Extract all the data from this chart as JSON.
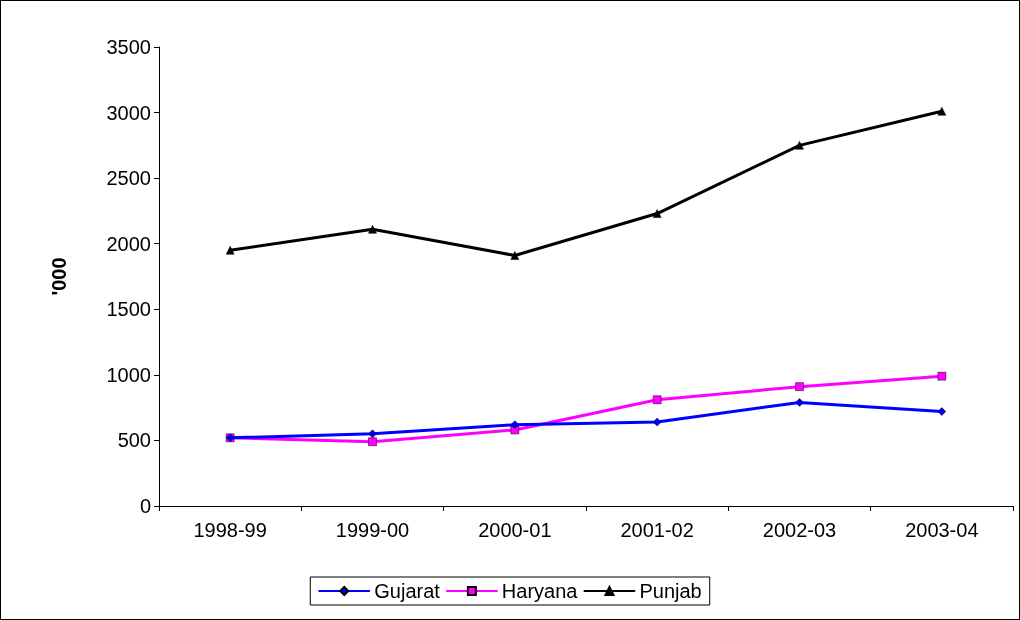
{
  "chart_data": {
    "type": "line",
    "ylabel": "'000",
    "categories": [
      "1998-99",
      "1999-00",
      "2000-01",
      "2001-02",
      "2002-03",
      "2003-04"
    ],
    "series": [
      {
        "name": "Gujarat",
        "color": "#0000ff",
        "marker": "diamond",
        "values": [
          520,
          550,
          620,
          640,
          790,
          720
        ]
      },
      {
        "name": "Haryana",
        "color": "#ff00ff",
        "marker": "square",
        "values": [
          520,
          490,
          580,
          810,
          910,
          990
        ]
      },
      {
        "name": "Punjab",
        "color": "#000000",
        "marker": "triangle",
        "values": [
          1950,
          2110,
          1910,
          2230,
          2750,
          3010
        ]
      }
    ],
    "ylim": [
      0,
      3500
    ],
    "yticks": [
      0,
      500,
      1000,
      1500,
      2000,
      2500,
      3000,
      3500
    ],
    "grid": false,
    "legend": "bottom",
    "line_style": "solid"
  }
}
